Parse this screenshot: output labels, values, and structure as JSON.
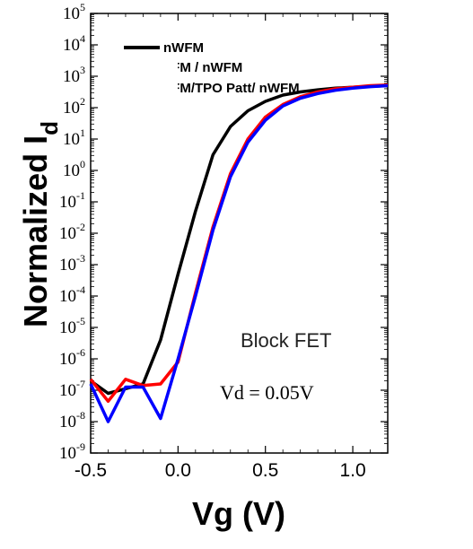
{
  "chart_data": {
    "type": "line",
    "xlabel": "Vg (V)",
    "ylabel": "Normalized I",
    "ylabel_subscript": "d",
    "x_ticks": [
      "-0.5",
      "0.0",
      "0.5",
      "1.0"
    ],
    "x_tick_values": [
      -0.5,
      0.0,
      0.5,
      1.0
    ],
    "y_tick_exponents": [
      -9,
      -8,
      -7,
      -6,
      -5,
      -4,
      -3,
      -2,
      -1,
      0,
      1,
      2,
      3,
      4,
      5
    ],
    "y_tick_base": "10",
    "y_scale": "log",
    "xlim": [
      -0.5,
      1.2
    ],
    "ylim_exponent": [
      -9,
      5
    ],
    "grid": false,
    "legend_position": "top-left",
    "annotations": [
      "Block FET",
      "Vd = 0.05V"
    ],
    "series": [
      {
        "name": "nWFM",
        "color": "#000000",
        "points": [
          [
            -0.5,
            -6.7
          ],
          [
            -0.4,
            -7.1
          ],
          [
            -0.3,
            -6.95
          ],
          [
            -0.2,
            -6.8
          ],
          [
            -0.1,
            -5.4
          ],
          [
            0.0,
            -3.3
          ],
          [
            0.1,
            -1.3
          ],
          [
            0.2,
            0.5
          ],
          [
            0.3,
            1.4
          ],
          [
            0.4,
            1.9
          ],
          [
            0.5,
            2.2
          ],
          [
            0.6,
            2.4
          ],
          [
            0.7,
            2.5
          ],
          [
            0.8,
            2.57
          ],
          [
            0.9,
            2.62
          ],
          [
            1.0,
            2.65
          ],
          [
            1.1,
            2.68
          ],
          [
            1.2,
            2.7
          ]
        ]
      },
      {
        "name": "TFM / nWFM",
        "color": "#ff0000",
        "points": [
          [
            -0.5,
            -6.65
          ],
          [
            -0.4,
            -7.35
          ],
          [
            -0.3,
            -6.65
          ],
          [
            -0.2,
            -6.85
          ],
          [
            -0.1,
            -6.8
          ],
          [
            0.0,
            -6.1
          ],
          [
            0.1,
            -3.9
          ],
          [
            0.2,
            -1.8
          ],
          [
            0.3,
            -0.1
          ],
          [
            0.4,
            1.0
          ],
          [
            0.5,
            1.7
          ],
          [
            0.6,
            2.1
          ],
          [
            0.7,
            2.35
          ],
          [
            0.8,
            2.5
          ],
          [
            0.9,
            2.6
          ],
          [
            1.0,
            2.65
          ],
          [
            1.1,
            2.7
          ],
          [
            1.2,
            2.72
          ]
        ]
      },
      {
        "name": "TFM/TPO Patt/ nWFM",
        "color": "#0000ff",
        "points": [
          [
            -0.5,
            -6.8
          ],
          [
            -0.4,
            -8.0
          ],
          [
            -0.3,
            -6.9
          ],
          [
            -0.2,
            -6.9
          ],
          [
            -0.1,
            -7.9
          ],
          [
            0.0,
            -6.0
          ],
          [
            0.1,
            -4.0
          ],
          [
            0.2,
            -1.9
          ],
          [
            0.3,
            -0.2
          ],
          [
            0.4,
            0.9
          ],
          [
            0.5,
            1.6
          ],
          [
            0.6,
            2.05
          ],
          [
            0.7,
            2.3
          ],
          [
            0.8,
            2.45
          ],
          [
            0.9,
            2.55
          ],
          [
            1.0,
            2.62
          ],
          [
            1.1,
            2.67
          ],
          [
            1.2,
            2.7
          ]
        ]
      }
    ]
  }
}
